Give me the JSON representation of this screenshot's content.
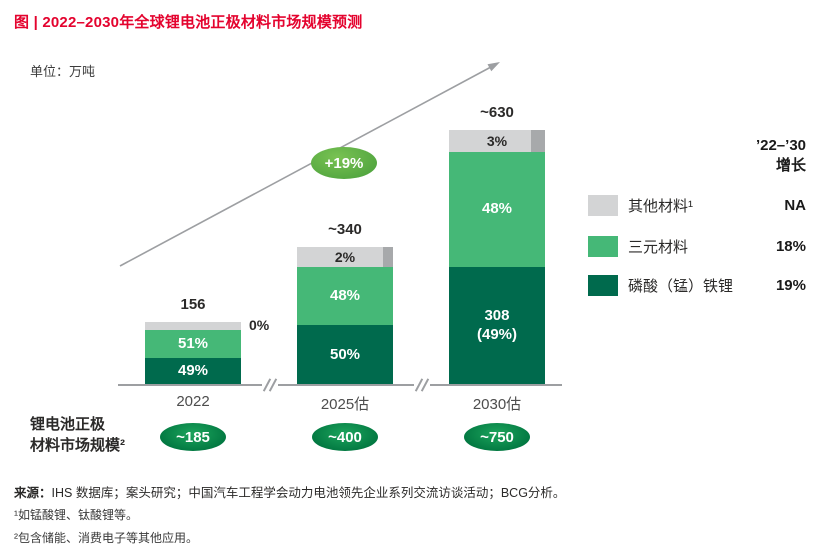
{
  "title": "图 | 2022–2030年全球锂电池正极材料市场规模预测",
  "unit_label": "单位：万吨",
  "colors": {
    "title_red": "#e4032e",
    "lfp_dark_green": "#006a4d",
    "ternary_green": "#45b877",
    "other_gray": "#d3d4d5",
    "other_gray_dark": "#a7a9ab",
    "badge_green": "#51a53f",
    "oval_green": "#00743f",
    "axis_gray": "#9d9fa2"
  },
  "chart_data": {
    "type": "stacked-bar",
    "title": "2022–2030年全球锂电池正极材料市场规模预测",
    "unit": "万吨",
    "categories": [
      "2022",
      "2025估",
      "2030估"
    ],
    "totals": [
      156,
      340,
      630
    ],
    "total_labels": [
      "156",
      "~340",
      "~630"
    ],
    "series": [
      {
        "name": "磷酸（锰）铁锂",
        "color": "#006a4d",
        "values_pct": [
          49,
          50,
          49
        ],
        "segment_labels": [
          "49%",
          "50%",
          "308\n(49%)"
        ]
      },
      {
        "name": "三元材料",
        "color": "#45b877",
        "values_pct": [
          51,
          48,
          48
        ],
        "segment_labels": [
          "51%",
          "48%",
          "48%"
        ]
      },
      {
        "name": "其他材料",
        "color": "#d3d4d5",
        "values_pct": [
          0,
          2,
          3
        ],
        "segment_labels": [
          "0%",
          "2%",
          "3%"
        ]
      }
    ],
    "cagr_badge": "+19%",
    "market_size_row": {
      "caption": "锂电池正极\n材料市场规模²",
      "values": [
        "~185",
        "~400",
        "~750"
      ]
    },
    "legend_position": "right",
    "ylim": [
      0,
      630
    ],
    "grid": false
  },
  "legend": {
    "header_line1": "’22–’30",
    "header_line2": "增长",
    "items": [
      {
        "label": "其他材料¹",
        "growth": "NA",
        "color": "#d3d4d5"
      },
      {
        "label": "三元材料",
        "growth": "18%",
        "color": "#45b877"
      },
      {
        "label": "磷酸（锰）铁锂",
        "growth": "19%",
        "color": "#006a4d"
      }
    ]
  },
  "footer": {
    "source_label": "来源：",
    "source_text": "IHS 数据库；案头研究；中国汽车工程学会动力电池领先企业系列交流访谈活动；BCG分析。",
    "footnote1": "¹如锰酸锂、钛酸锂等。",
    "footnote2": "²包含储能、消费电子等其他应用。"
  }
}
